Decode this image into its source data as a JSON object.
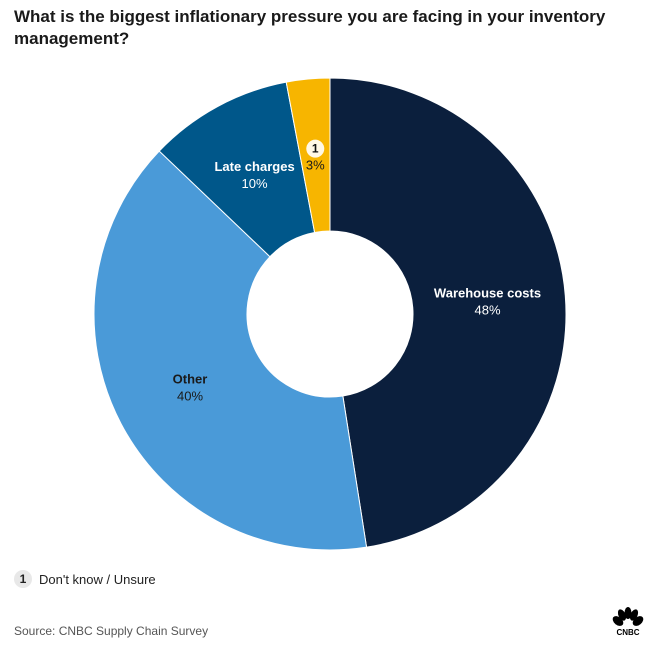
{
  "chart_data": {
    "type": "pie",
    "title": "What is the biggest inflationary pressure you are facing in your inventory management?",
    "slices": [
      {
        "label": "Warehouse costs",
        "value": 48,
        "value_label": "48%",
        "color": "#0b1f3d",
        "text_color": "#ffffff"
      },
      {
        "label": "Other",
        "value": 40,
        "value_label": "40%",
        "color": "#4a9ad8",
        "text_color": "#1a1a1a"
      },
      {
        "label": "Late charges",
        "value": 10,
        "value_label": "10%",
        "color": "#00578a",
        "text_color": "#ffffff"
      },
      {
        "label": "1",
        "value": 3,
        "value_label": "3%",
        "color": "#f7b500",
        "text_color": "#1a1a1a",
        "badge": true
      }
    ],
    "donut": true
  },
  "legend": {
    "badge": "1",
    "text": "Don't know / Unsure"
  },
  "source": "Source: CNBC Supply Chain Survey",
  "logo": "CNBC"
}
